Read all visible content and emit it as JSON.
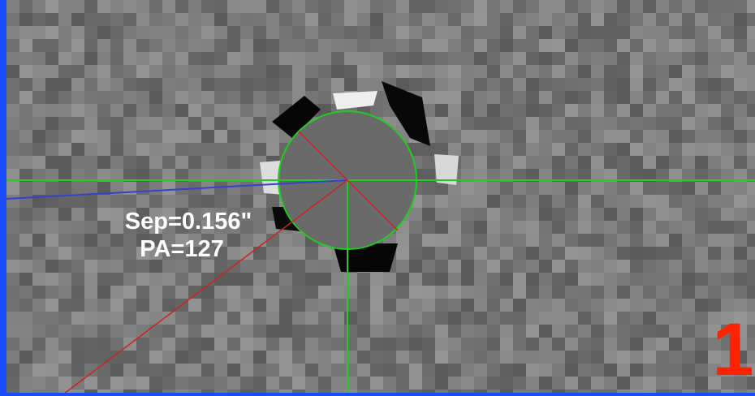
{
  "annotations": {
    "separation": "Sep=0.156\"",
    "position_angle": "PA=127"
  },
  "panel_label": "1"
}
